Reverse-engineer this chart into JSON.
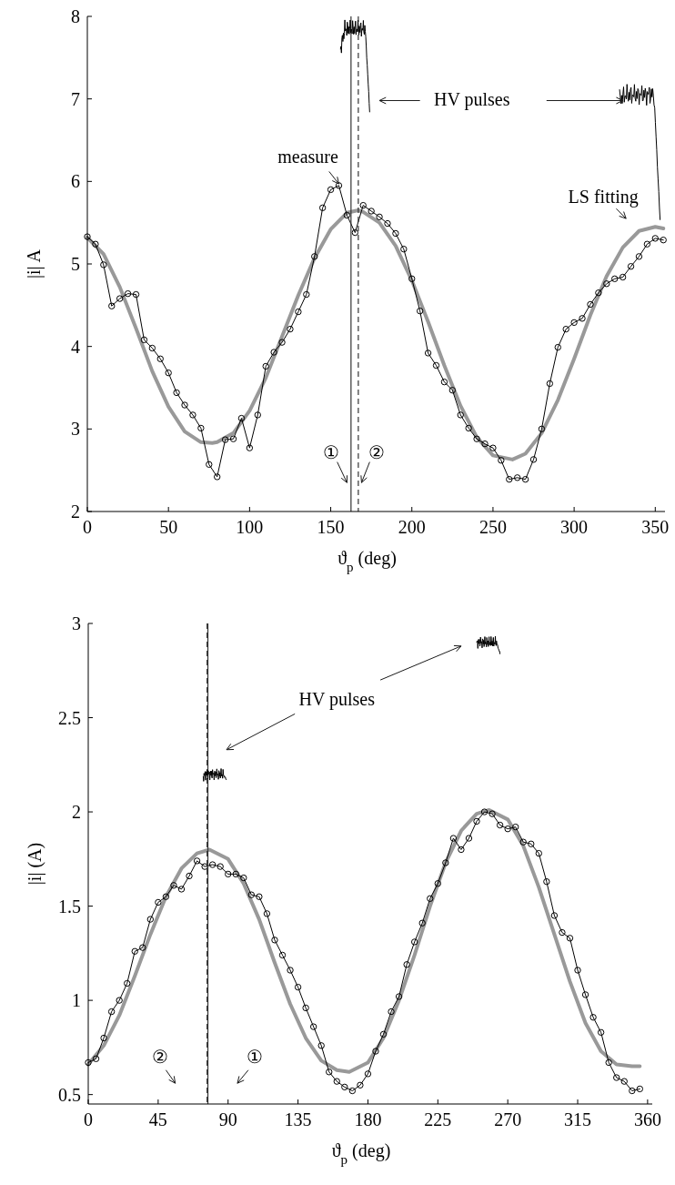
{
  "chart_data": [
    {
      "type": "line",
      "xlabel": "ϑ$_{p}$ (deg)",
      "ylabel": "|i| A",
      "xlim": [
        0,
        356
      ],
      "ylim": [
        2,
        8
      ],
      "xticks": [
        0,
        50,
        100,
        150,
        200,
        250,
        300,
        350
      ],
      "yticks": [
        2,
        3,
        4,
        5,
        6,
        7,
        8
      ],
      "grid": false,
      "series": [
        {
          "color": "#000000",
          "marker": "circle",
          "x": [
            0,
            5,
            10,
            15,
            20,
            25,
            30,
            35,
            40,
            45,
            50,
            55,
            60,
            65,
            70,
            75,
            80,
            85,
            90,
            95,
            100,
            105,
            110,
            115,
            120,
            125,
            130,
            135,
            140,
            145,
            150,
            155,
            160,
            165,
            170,
            175,
            180,
            185,
            190,
            195,
            200,
            205,
            210,
            215,
            220,
            225,
            230,
            235,
            240,
            245,
            250,
            255,
            260,
            265,
            270,
            275,
            280,
            285,
            290,
            295,
            300,
            305,
            310,
            315,
            320,
            325,
            330,
            335,
            340,
            345,
            350,
            355
          ],
          "values": [
            5.33,
            5.24,
            4.99,
            4.49,
            4.58,
            4.64,
            4.63,
            4.08,
            3.98,
            3.85,
            3.68,
            3.44,
            3.29,
            3.17,
            3.01,
            2.57,
            2.42,
            2.87,
            2.88,
            3.13,
            2.77,
            3.17,
            3.76,
            3.93,
            4.05,
            4.21,
            4.42,
            4.63,
            5.09,
            5.68,
            5.9,
            5.95,
            5.59,
            5.38,
            5.71,
            5.64,
            5.57,
            5.49,
            5.37,
            5.18,
            4.82,
            4.43,
            3.92,
            3.77,
            3.57,
            3.47,
            3.17,
            3.01,
            2.88,
            2.82,
            2.77,
            2.62,
            2.39,
            2.41,
            2.39,
            2.63,
            3.0,
            3.55,
            3.99,
            4.21,
            4.29,
            4.34,
            4.51,
            4.65,
            4.76,
            4.82,
            4.84,
            4.97,
            5.09,
            5.24,
            5.31,
            5.29
          ]
        },
        {
          "color": "#999999",
          "marker": "none",
          "x": [
            0,
            10,
            20,
            30,
            40,
            50,
            60,
            70,
            77,
            80,
            90,
            100,
            110,
            120,
            130,
            140,
            150,
            160,
            167,
            170,
            180,
            190,
            200,
            210,
            220,
            230,
            240,
            250,
            262,
            270,
            280,
            290,
            300,
            310,
            320,
            330,
            340,
            350,
            355
          ],
          "values": [
            5.32,
            5.12,
            4.72,
            4.22,
            3.7,
            3.27,
            2.97,
            2.84,
            2.83,
            2.84,
            2.95,
            3.22,
            3.62,
            4.12,
            4.62,
            5.07,
            5.42,
            5.62,
            5.65,
            5.63,
            5.5,
            5.22,
            4.8,
            4.3,
            3.77,
            3.28,
            2.9,
            2.68,
            2.63,
            2.7,
            2.95,
            3.35,
            3.85,
            4.38,
            4.85,
            5.2,
            5.4,
            5.45,
            5.43
          ]
        }
      ],
      "ref_lines": [
        {
          "axis": "x",
          "value": 162.5,
          "color": "#333333",
          "line_style": "solid"
        },
        {
          "axis": "x",
          "value": 167,
          "color": "#333333",
          "line_style": "dashed"
        }
      ],
      "annotations": [
        "measure",
        "LS fitting",
        "HV pulses",
        "①",
        "②"
      ]
    },
    {
      "type": "line",
      "xlabel": "ϑ$_{p}$ (deg)",
      "ylabel": "|i| (A)",
      "xlim": [
        0,
        363
      ],
      "ylim": [
        0.45,
        3
      ],
      "xticks": [
        0,
        45,
        90,
        135,
        180,
        225,
        270,
        315,
        360
      ],
      "yticks": [
        0.5,
        1,
        1.5,
        2,
        2.5,
        3
      ],
      "grid": false,
      "series": [
        {
          "color": "#000000",
          "marker": "circle",
          "x": [
            0,
            5,
            10,
            15,
            20,
            25,
            30,
            35,
            40,
            45,
            50,
            55,
            60,
            65,
            70,
            75,
            80,
            85,
            90,
            95,
            100,
            105,
            110,
            115,
            120,
            125,
            130,
            135,
            140,
            145,
            150,
            155,
            160,
            165,
            170,
            175,
            180,
            185,
            190,
            195,
            200,
            205,
            210,
            215,
            220,
            225,
            230,
            235,
            240,
            245,
            250,
            255,
            260,
            265,
            270,
            275,
            280,
            285,
            290,
            295,
            300,
            305,
            310,
            315,
            320,
            325,
            330,
            335,
            340,
            345,
            350,
            355
          ],
          "values": [
            0.67,
            0.69,
            0.8,
            0.94,
            1.0,
            1.09,
            1.26,
            1.28,
            1.43,
            1.52,
            1.55,
            1.61,
            1.59,
            1.66,
            1.74,
            1.71,
            1.72,
            1.71,
            1.67,
            1.67,
            1.65,
            1.56,
            1.55,
            1.46,
            1.32,
            1.24,
            1.16,
            1.07,
            0.96,
            0.86,
            0.76,
            0.62,
            0.57,
            0.54,
            0.52,
            0.55,
            0.61,
            0.73,
            0.82,
            0.94,
            1.02,
            1.19,
            1.31,
            1.41,
            1.54,
            1.62,
            1.73,
            1.86,
            1.8,
            1.86,
            1.95,
            2.0,
            1.99,
            1.93,
            1.91,
            1.92,
            1.84,
            1.83,
            1.78,
            1.63,
            1.45,
            1.36,
            1.33,
            1.16,
            1.03,
            0.91,
            0.83,
            0.67,
            0.59,
            0.57,
            0.52,
            0.53
          ]
        },
        {
          "color": "#999999",
          "marker": "none",
          "x": [
            0,
            10,
            20,
            30,
            40,
            50,
            60,
            70,
            78,
            90,
            100,
            110,
            120,
            130,
            140,
            150,
            160,
            168,
            180,
            190,
            200,
            210,
            220,
            230,
            240,
            250,
            258,
            270,
            280,
            290,
            300,
            310,
            320,
            330,
            340,
            350,
            355
          ],
          "values": [
            0.66,
            0.76,
            0.92,
            1.13,
            1.35,
            1.55,
            1.7,
            1.78,
            1.8,
            1.75,
            1.62,
            1.43,
            1.2,
            0.98,
            0.8,
            0.68,
            0.63,
            0.62,
            0.67,
            0.8,
            1.0,
            1.24,
            1.5,
            1.73,
            1.9,
            1.99,
            2.01,
            1.96,
            1.82,
            1.6,
            1.35,
            1.1,
            0.88,
            0.73,
            0.66,
            0.65,
            0.65
          ]
        }
      ],
      "ref_lines": [
        {
          "axis": "x",
          "value": 77,
          "color": "#333333",
          "line_style": "solid"
        },
        {
          "axis": "x",
          "value": 76.5,
          "color": "#333333",
          "line_style": "dashed"
        }
      ],
      "annotations": [
        "HV pulses",
        "②",
        "①"
      ]
    }
  ]
}
